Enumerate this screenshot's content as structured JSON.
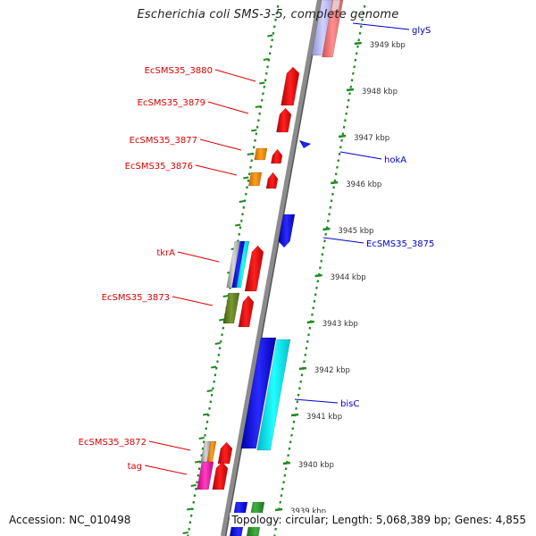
{
  "title": "Escherichia coli SMS-3-5, complete genome",
  "accession": "Accession: NC_010498",
  "summary": "Topology: circular; Length: 5,068,389 bp; Genes: 4,855",
  "colors": {
    "backbone": "#8c8c8c",
    "dots": "#1f8a1f",
    "label_left": "#dd0000",
    "label_right": "#0000c8",
    "kbp_text": "#333333"
  },
  "scale": {
    "unit": "kbp",
    "ticks": [
      "3949 kbp",
      "3948 kbp",
      "3947 kbp",
      "3946 kbp",
      "3945 kbp",
      "3944 kbp",
      "3943 kbp",
      "3942 kbp",
      "3941 kbp",
      "3940 kbp",
      "3939 kbp"
    ]
  },
  "labels_left": [
    {
      "text": "EcSMS35_3880"
    },
    {
      "text": "EcSMS35_3879"
    },
    {
      "text": "EcSMS35_3877"
    },
    {
      "text": "EcSMS35_3876"
    },
    {
      "text": "tkrA"
    },
    {
      "text": "EcSMS35_3873"
    },
    {
      "text": "EcSMS35_3872"
    },
    {
      "text": "tag"
    }
  ],
  "labels_right": [
    {
      "text": "glyS"
    },
    {
      "text": "hokA"
    },
    {
      "text": "EcSMS35_3875"
    },
    {
      "text": "bisC"
    }
  ]
}
